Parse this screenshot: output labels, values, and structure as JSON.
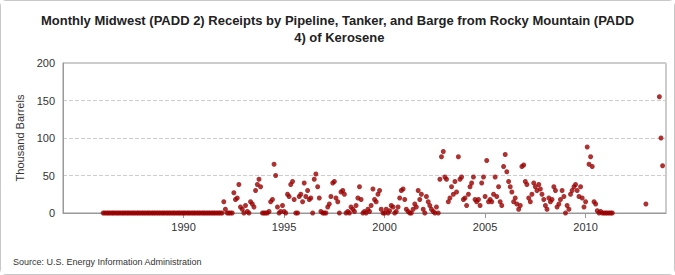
{
  "chart_data": {
    "type": "scatter",
    "title": "Monthly Midwest (PADD 2) Receipts by Pipeline, Tanker, and Barge from Rocky Mountain (PADD 4) of Kerosene",
    "y_label": "Thousand Barrels",
    "annotation": "Source: U.S. Energy Information Administration",
    "color": "#990000",
    "marker": "circle",
    "grid": true,
    "xlim": [
      1984,
      2014
    ],
    "xticks": [
      1990,
      1995,
      2000,
      2005,
      2010
    ],
    "ylim": [
      0,
      200
    ],
    "yticks": [
      0,
      50,
      100,
      150,
      200
    ],
    "x": [
      1986.0,
      1986.08,
      1986.17,
      1986.25,
      1986.33,
      1986.42,
      1986.5,
      1986.58,
      1986.67,
      1986.75,
      1986.83,
      1986.92,
      1987.0,
      1987.08,
      1987.17,
      1987.25,
      1987.33,
      1987.42,
      1987.5,
      1987.58,
      1987.67,
      1987.75,
      1987.83,
      1987.92,
      1988.0,
      1988.08,
      1988.17,
      1988.25,
      1988.33,
      1988.42,
      1988.5,
      1988.58,
      1988.67,
      1988.75,
      1988.83,
      1988.92,
      1989.0,
      1989.08,
      1989.17,
      1989.25,
      1989.33,
      1989.42,
      1989.5,
      1989.58,
      1989.67,
      1989.75,
      1989.83,
      1989.92,
      1990.0,
      1990.08,
      1990.17,
      1990.25,
      1990.33,
      1990.42,
      1990.5,
      1990.58,
      1990.67,
      1990.75,
      1990.83,
      1990.92,
      1991.0,
      1991.08,
      1991.17,
      1991.25,
      1991.33,
      1991.42,
      1991.5,
      1991.58,
      1991.67,
      1991.75,
      1991.83,
      1991.92,
      1992.0,
      1992.08,
      1992.17,
      1992.25,
      1992.33,
      1992.42,
      1992.5,
      1992.58,
      1992.67,
      1992.75,
      1992.83,
      1992.92,
      1993.0,
      1993.08,
      1993.17,
      1993.25,
      1993.33,
      1993.42,
      1993.5,
      1993.58,
      1993.67,
      1993.75,
      1993.83,
      1993.92,
      1994.0,
      1994.08,
      1994.17,
      1994.25,
      1994.33,
      1994.42,
      1994.5,
      1994.58,
      1994.67,
      1994.75,
      1994.83,
      1994.92,
      1995.0,
      1995.08,
      1995.17,
      1995.25,
      1995.33,
      1995.42,
      1995.5,
      1995.58,
      1995.67,
      1995.75,
      1995.83,
      1995.92,
      1996.0,
      1996.08,
      1996.17,
      1996.25,
      1996.33,
      1996.42,
      1996.5,
      1996.58,
      1996.67,
      1996.75,
      1996.83,
      1996.92,
      1997.0,
      1997.08,
      1997.17,
      1997.25,
      1997.33,
      1997.42,
      1997.5,
      1997.58,
      1997.67,
      1997.75,
      1997.83,
      1997.92,
      1998.0,
      1998.08,
      1998.17,
      1998.25,
      1998.33,
      1998.42,
      1998.5,
      1998.58,
      1998.67,
      1998.75,
      1998.83,
      1998.92,
      1999.0,
      1999.08,
      1999.17,
      1999.25,
      1999.33,
      1999.42,
      1999.5,
      1999.58,
      1999.67,
      1999.75,
      1999.83,
      1999.92,
      2000.0,
      2000.08,
      2000.17,
      2000.25,
      2000.33,
      2000.42,
      2000.5,
      2000.58,
      2000.67,
      2000.75,
      2000.83,
      2000.92,
      2001.0,
      2001.08,
      2001.17,
      2001.25,
      2001.33,
      2001.42,
      2001.5,
      2001.58,
      2001.67,
      2001.75,
      2001.83,
      2001.92,
      2002.0,
      2002.08,
      2002.17,
      2002.25,
      2002.33,
      2002.42,
      2002.5,
      2002.58,
      2002.67,
      2002.75,
      2002.83,
      2002.92,
      2003.0,
      2003.08,
      2003.17,
      2003.25,
      2003.33,
      2003.42,
      2003.5,
      2003.58,
      2003.67,
      2003.75,
      2003.83,
      2003.92,
      2004.0,
      2004.08,
      2004.17,
      2004.25,
      2004.33,
      2004.42,
      2004.5,
      2004.58,
      2004.67,
      2004.75,
      2004.83,
      2004.92,
      2005.0,
      2005.08,
      2005.17,
      2005.25,
      2005.33,
      2005.42,
      2005.5,
      2005.58,
      2005.67,
      2005.75,
      2005.83,
      2005.92,
      2006.0,
      2006.08,
      2006.17,
      2006.25,
      2006.33,
      2006.42,
      2006.5,
      2006.58,
      2006.67,
      2006.75,
      2006.83,
      2006.92,
      2007.0,
      2007.08,
      2007.17,
      2007.25,
      2007.33,
      2007.42,
      2007.5,
      2007.58,
      2007.67,
      2007.75,
      2007.83,
      2007.92,
      2008.0,
      2008.08,
      2008.17,
      2008.25,
      2008.33,
      2008.42,
      2008.5,
      2008.58,
      2008.67,
      2008.75,
      2008.83,
      2008.92,
      2009.0,
      2009.08,
      2009.17,
      2009.25,
      2009.33,
      2009.42,
      2009.5,
      2009.58,
      2009.67,
      2009.75,
      2009.83,
      2009.92,
      2010.0,
      2010.08,
      2010.17,
      2010.25,
      2010.33,
      2010.42,
      2010.5,
      2010.58,
      2010.67,
      2010.75,
      2010.83,
      2010.92,
      2011.0,
      2011.08,
      2011.17,
      2011.25,
      2011.33,
      2013.0,
      2013.67,
      2013.75,
      2013.83
    ],
    "values": [
      0,
      0,
      0,
      0,
      0,
      0,
      0,
      0,
      0,
      0,
      0,
      0,
      0,
      0,
      0,
      0,
      0,
      0,
      0,
      0,
      0,
      0,
      0,
      0,
      0,
      0,
      0,
      0,
      0,
      0,
      0,
      0,
      0,
      0,
      0,
      0,
      0,
      0,
      0,
      0,
      0,
      0,
      0,
      0,
      0,
      0,
      0,
      0,
      0,
      0,
      0,
      0,
      0,
      0,
      0,
      0,
      0,
      0,
      0,
      0,
      0,
      0,
      0,
      0,
      0,
      0,
      0,
      0,
      0,
      0,
      0,
      0,
      15,
      5,
      0,
      0,
      0,
      0,
      27,
      18,
      20,
      38,
      8,
      5,
      0,
      10,
      2,
      0,
      15,
      12,
      8,
      30,
      38,
      45,
      35,
      0,
      0,
      0,
      0,
      2,
      15,
      18,
      65,
      50,
      8,
      0,
      2,
      10,
      2,
      0,
      25,
      22,
      38,
      42,
      18,
      0,
      0,
      22,
      25,
      15,
      40,
      22,
      30,
      18,
      20,
      0,
      45,
      52,
      35,
      20,
      2,
      0,
      0,
      0,
      8,
      12,
      22,
      40,
      42,
      20,
      15,
      0,
      28,
      30,
      25,
      0,
      2,
      0,
      8,
      5,
      2,
      10,
      20,
      35,
      18,
      0,
      2,
      0,
      5,
      2,
      10,
      32,
      18,
      15,
      25,
      30,
      5,
      0,
      0,
      5,
      0,
      3,
      10,
      8,
      0,
      2,
      8,
      20,
      30,
      32,
      18,
      5,
      2,
      0,
      0,
      5,
      12,
      8,
      30,
      18,
      25,
      5,
      0,
      22,
      15,
      10,
      5,
      2,
      0,
      8,
      0,
      45,
      75,
      82,
      48,
      45,
      15,
      20,
      35,
      25,
      42,
      28,
      75,
      45,
      48,
      18,
      20,
      10,
      25,
      35,
      40,
      48,
      18,
      15,
      18,
      10,
      40,
      48,
      22,
      70,
      15,
      18,
      15,
      25,
      48,
      22,
      35,
      15,
      10,
      62,
      78,
      55,
      42,
      35,
      28,
      15,
      20,
      12,
      5,
      10,
      62,
      64,
      42,
      38,
      20,
      15,
      25,
      40,
      35,
      30,
      38,
      32,
      25,
      18,
      10,
      5,
      20,
      15,
      18,
      35,
      30,
      8,
      12,
      18,
      30,
      22,
      0,
      10,
      5,
      25,
      30,
      35,
      38,
      30,
      22,
      35,
      20,
      8,
      15,
      88,
      65,
      75,
      62,
      15,
      12,
      3,
      0,
      2,
      0,
      0,
      0,
      0,
      0,
      0,
      0,
      12,
      155,
      100,
      63
    ]
  }
}
